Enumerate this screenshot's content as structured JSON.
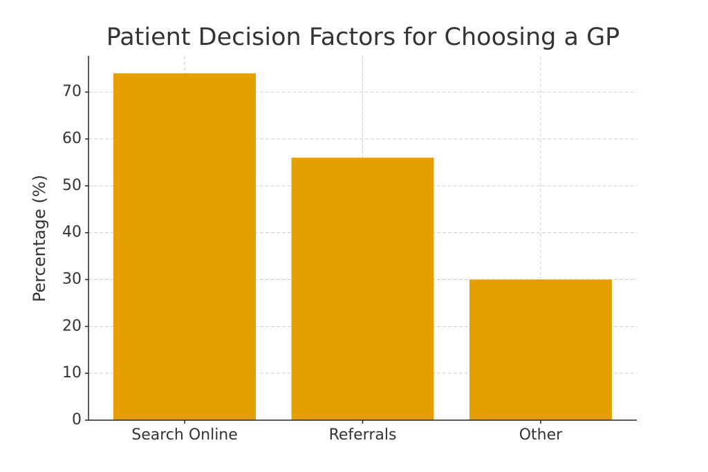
{
  "chart_data": {
    "type": "bar",
    "title": "Patient Decision Factors for Choosing a GP",
    "y_label": "Percentage (%)",
    "categories": [
      "Search Online",
      "Referrals",
      "Other"
    ],
    "values": [
      74,
      56,
      30
    ],
    "color": "#e69f00",
    "ylim": [
      0,
      77.7
    ],
    "yticks": [
      0,
      10,
      20,
      30,
      40,
      50,
      60,
      70
    ],
    "grid": true
  }
}
